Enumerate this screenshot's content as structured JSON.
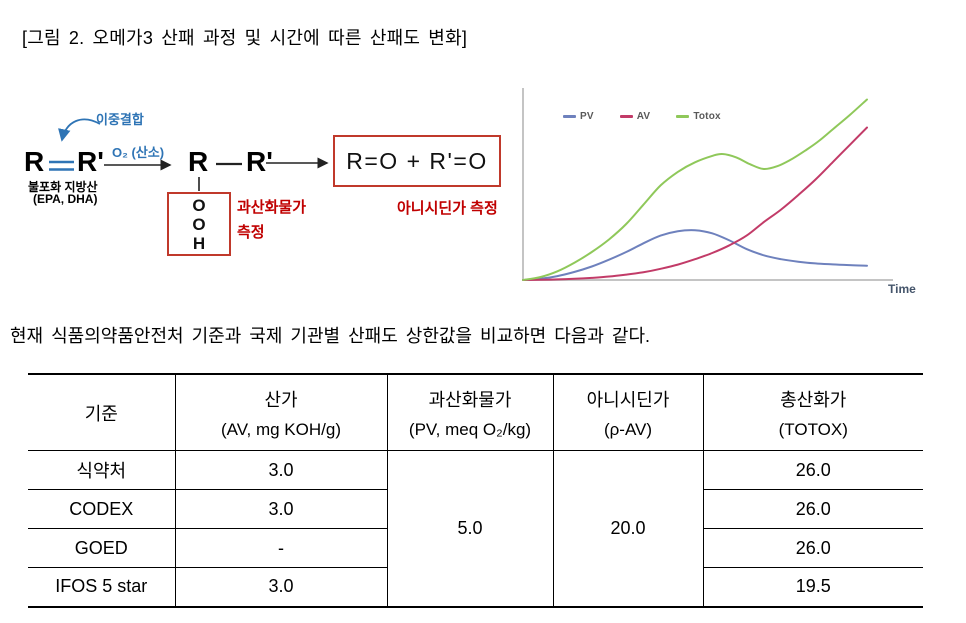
{
  "title": "[그림 2. 오메가3 산패 과정 및 시간에 따른 산패도 변화]",
  "paragraph": "현재 식품의약품안전처 기준과 국제 기관별 산패도 상한값을 비교하면 다음과 같다.",
  "diagram": {
    "double_bond_label": "이중결합",
    "r1": "R",
    "r1_prime": "R'",
    "unsaturated_line1": "불포화 지방산",
    "unsaturated_line2": "(EPA, DHA)",
    "oxygen_label": "O₂ (산소)",
    "r2": "R",
    "r2_prime": "R'",
    "ooh": [
      "O",
      "O",
      "H"
    ],
    "peroxide_line1": "과산화물가",
    "peroxide_line2": "측정",
    "product_formula": "R=O + R'=O",
    "anisidine_label": "아니시딘가 측정",
    "colors": {
      "blue": "#2e74b5",
      "red": "#c00000",
      "box_red": "#c0392b"
    }
  },
  "chart_data": {
    "type": "line",
    "title": "",
    "xlabel": "Time",
    "ylabel": "",
    "x_range": [
      0,
      1
    ],
    "y_range": [
      0,
      100
    ],
    "grid": false,
    "legend_position": "top-left-inside",
    "axis_color": "#c4c4c4",
    "time_label_color": "#44546a",
    "series": [
      {
        "name": "PV",
        "color": "#6e81bd",
        "points": [
          [
            0,
            0
          ],
          [
            0.05,
            0.6
          ],
          [
            0.1,
            2
          ],
          [
            0.15,
            4.2
          ],
          [
            0.2,
            7
          ],
          [
            0.25,
            10.5
          ],
          [
            0.3,
            14.5
          ],
          [
            0.35,
            19
          ],
          [
            0.4,
            23
          ],
          [
            0.45,
            25.3
          ],
          [
            0.5,
            25.8
          ],
          [
            0.55,
            24.2
          ],
          [
            0.6,
            20.5
          ],
          [
            0.65,
            16
          ],
          [
            0.7,
            12.8
          ],
          [
            0.75,
            10.8
          ],
          [
            0.8,
            9.5
          ],
          [
            0.85,
            8.6
          ],
          [
            0.9,
            8.1
          ],
          [
            0.95,
            7.7
          ],
          [
            1,
            7.4
          ]
        ]
      },
      {
        "name": "AV",
        "color": "#c23b68",
        "points": [
          [
            0,
            0
          ],
          [
            0.05,
            0.1
          ],
          [
            0.1,
            0.3
          ],
          [
            0.15,
            0.6
          ],
          [
            0.2,
            1.1
          ],
          [
            0.25,
            1.8
          ],
          [
            0.3,
            2.8
          ],
          [
            0.35,
            4
          ],
          [
            0.4,
            5.8
          ],
          [
            0.45,
            8
          ],
          [
            0.5,
            10.8
          ],
          [
            0.55,
            14
          ],
          [
            0.6,
            18
          ],
          [
            0.65,
            23
          ],
          [
            0.7,
            30
          ],
          [
            0.75,
            36.5
          ],
          [
            0.8,
            44
          ],
          [
            0.85,
            52
          ],
          [
            0.9,
            61
          ],
          [
            0.95,
            70
          ],
          [
            1,
            79
          ]
        ]
      },
      {
        "name": "Totox",
        "color": "#8fc85a",
        "points": [
          [
            0,
            0
          ],
          [
            0.05,
            1.5
          ],
          [
            0.1,
            4.5
          ],
          [
            0.15,
            9
          ],
          [
            0.2,
            14.5
          ],
          [
            0.25,
            21
          ],
          [
            0.3,
            29
          ],
          [
            0.35,
            39
          ],
          [
            0.4,
            49
          ],
          [
            0.45,
            56
          ],
          [
            0.5,
            61
          ],
          [
            0.55,
            64.3
          ],
          [
            0.58,
            65.3
          ],
          [
            0.62,
            63.5
          ],
          [
            0.66,
            60
          ],
          [
            0.7,
            57.5
          ],
          [
            0.74,
            59
          ],
          [
            0.78,
            62.5
          ],
          [
            0.82,
            67
          ],
          [
            0.86,
            72
          ],
          [
            0.9,
            78
          ],
          [
            0.95,
            85.5
          ],
          [
            1,
            93.5
          ]
        ]
      }
    ]
  },
  "table": {
    "headers": [
      {
        "line1": "기준",
        "line2": ""
      },
      {
        "line1": "산가",
        "line2": "(AV, mg KOH/g)"
      },
      {
        "line1": "과산화물가",
        "line2": "(PV, meq O₂/kg)"
      },
      {
        "line1": "아니시딘가",
        "line2": "(ρ-AV)"
      },
      {
        "line1": "총산화가",
        "line2": "(TOTOX)"
      }
    ],
    "merged": {
      "pv": "5.0",
      "pav": "20.0"
    },
    "rows": [
      {
        "label": "식약처",
        "av": "3.0",
        "totox": "26.0"
      },
      {
        "label": "CODEX",
        "av": "3.0",
        "totox": "26.0"
      },
      {
        "label": "GOED",
        "av": "-",
        "totox": "26.0"
      },
      {
        "label": "IFOS 5 star",
        "av": "3.0",
        "totox": "19.5"
      }
    ]
  }
}
